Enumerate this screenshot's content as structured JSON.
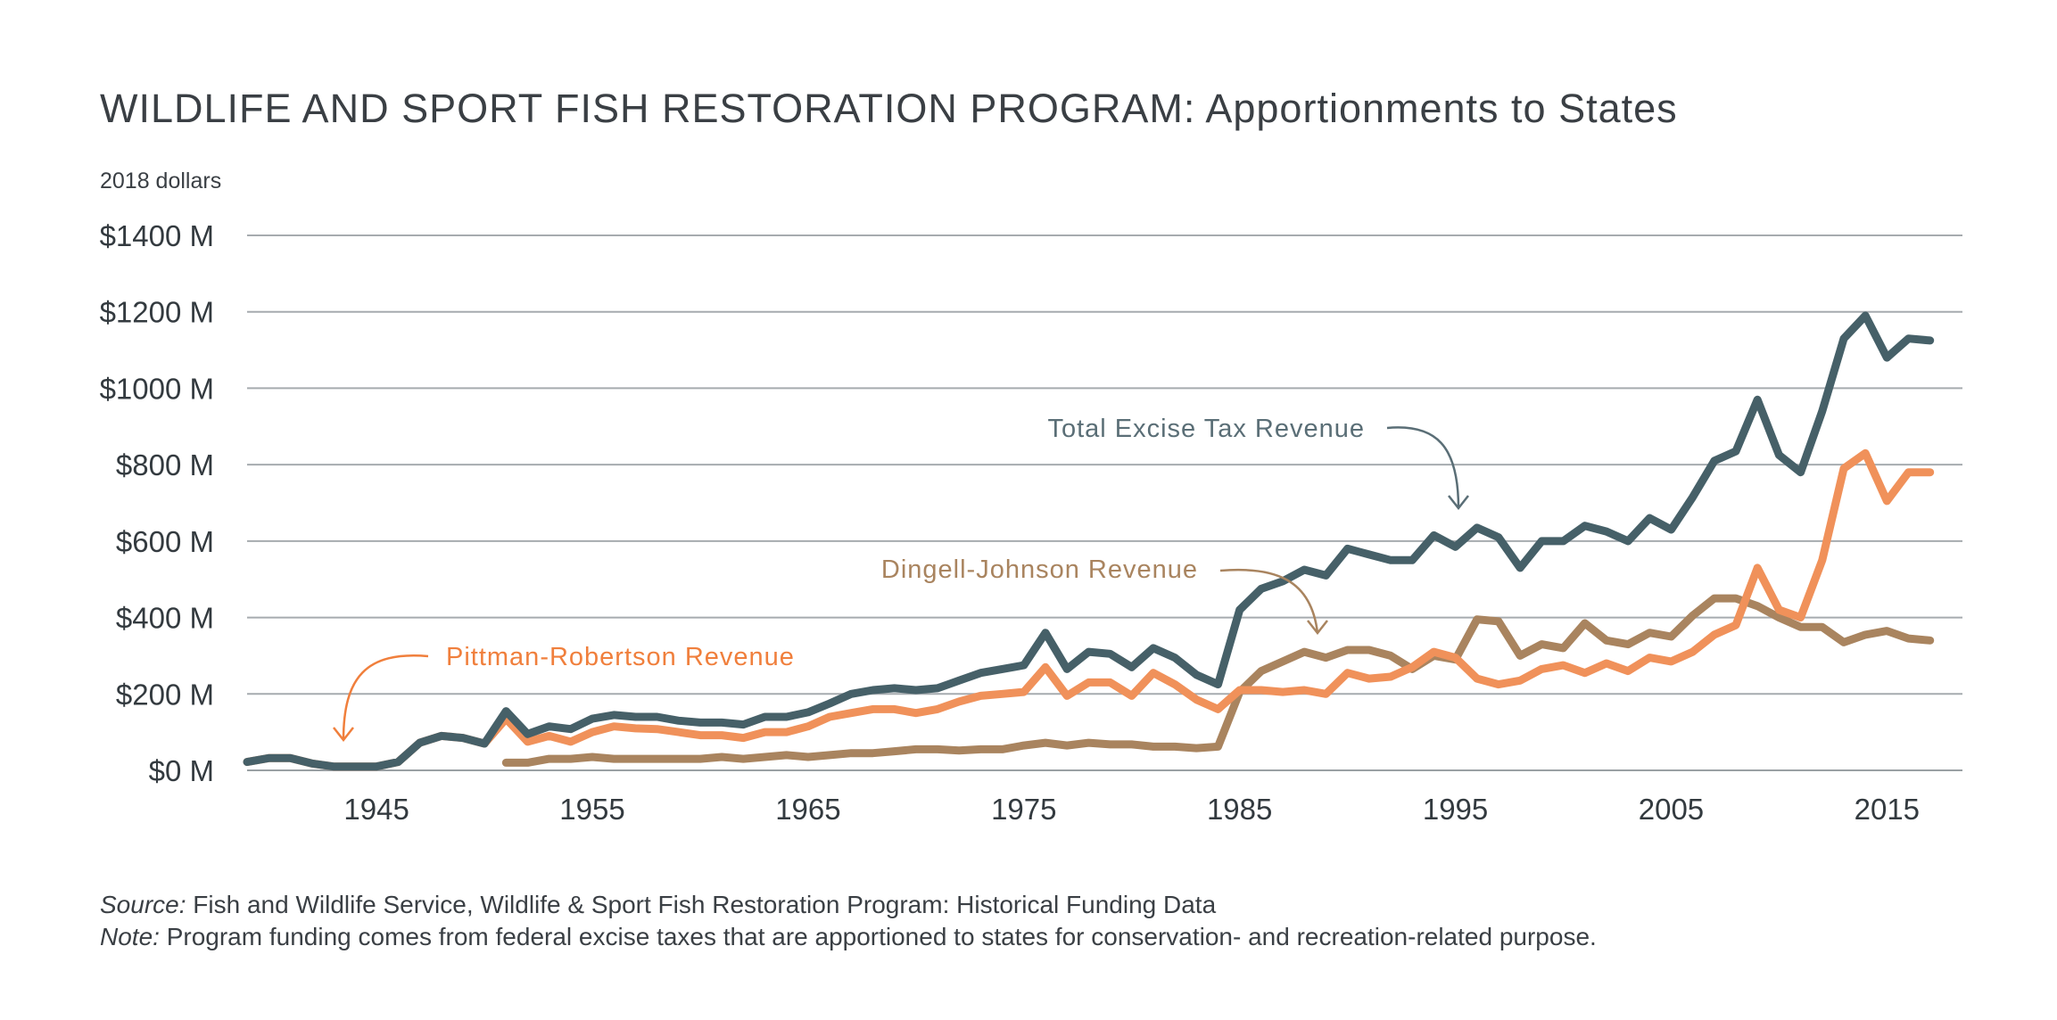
{
  "chart_data": {
    "type": "line",
    "title": "WILDLIFE AND SPORT FISH RESTORATION PROGRAM: Apportionments to States",
    "units_label": "2018 dollars",
    "ylim": [
      0,
      1400
    ],
    "yticks": [
      "$1400 M",
      "$1200 M",
      "$1000 M",
      "$800 M",
      "$600 M",
      "$400 M",
      "$200 M",
      "$0 M"
    ],
    "ytick_values": [
      1400,
      1200,
      1000,
      800,
      600,
      400,
      200,
      0
    ],
    "xlim": [
      1939,
      2018.5
    ],
    "xticks": [
      "1945",
      "1955",
      "1965",
      "1975",
      "1985",
      "1995",
      "2005",
      "2015"
    ],
    "xtick_values": [
      1945,
      1955,
      1965,
      1975,
      1985,
      1995,
      2005,
      2015
    ],
    "grid": true,
    "series": [
      {
        "name": "Total Excise Tax Revenue",
        "color": "#466068",
        "x": [
          1939,
          1940,
          1941,
          1942,
          1943,
          1944,
          1945,
          1946,
          1947,
          1948,
          1949,
          1950,
          1951,
          1952,
          1953,
          1954,
          1955,
          1956,
          1957,
          1958,
          1959,
          1960,
          1961,
          1962,
          1963,
          1964,
          1965,
          1966,
          1967,
          1968,
          1969,
          1970,
          1971,
          1972,
          1973,
          1974,
          1975,
          1976,
          1977,
          1978,
          1979,
          1980,
          1981,
          1982,
          1983,
          1984,
          1985,
          1986,
          1987,
          1988,
          1989,
          1990,
          1991,
          1992,
          1993,
          1994,
          1995,
          1996,
          1997,
          1998,
          1999,
          2000,
          2001,
          2002,
          2003,
          2004,
          2005,
          2006,
          2007,
          2008,
          2009,
          2010,
          2011,
          2012,
          2013,
          2014,
          2015,
          2016,
          2017,
          2018
        ],
        "values": [
          22,
          32,
          32,
          18,
          10,
          10,
          10,
          22,
          72,
          90,
          85,
          70,
          155,
          95,
          115,
          108,
          135,
          145,
          140,
          140,
          130,
          125,
          125,
          120,
          140,
          140,
          152,
          175,
          200,
          210,
          215,
          210,
          215,
          235,
          255,
          265,
          275,
          360,
          265,
          310,
          305,
          270,
          320,
          295,
          250,
          225,
          420,
          475,
          495,
          525,
          510,
          580,
          565,
          550,
          550,
          615,
          585,
          635,
          610,
          530,
          600,
          600,
          640,
          625,
          600,
          660,
          630,
          715,
          810,
          835,
          970,
          825,
          780,
          940,
          1130,
          1190,
          1080,
          1130,
          1125,
          null
        ]
      },
      {
        "name": "Pittman-Robertson Revenue",
        "color": "#f0915a",
        "x": [
          1939,
          1940,
          1941,
          1942,
          1943,
          1944,
          1945,
          1946,
          1947,
          1948,
          1949,
          1950,
          1951,
          1952,
          1953,
          1954,
          1955,
          1956,
          1957,
          1958,
          1959,
          1960,
          1961,
          1962,
          1963,
          1964,
          1965,
          1966,
          1967,
          1968,
          1969,
          1970,
          1971,
          1972,
          1973,
          1974,
          1975,
          1976,
          1977,
          1978,
          1979,
          1980,
          1981,
          1982,
          1983,
          1984,
          1985,
          1986,
          1987,
          1988,
          1989,
          1990,
          1991,
          1992,
          1993,
          1994,
          1995,
          1996,
          1997,
          1998,
          1999,
          2000,
          2001,
          2002,
          2003,
          2004,
          2005,
          2006,
          2007,
          2008,
          2009,
          2010,
          2011,
          2012,
          2013,
          2014,
          2015,
          2016,
          2017,
          2018
        ],
        "values": [
          22,
          32,
          32,
          18,
          10,
          10,
          10,
          22,
          72,
          90,
          85,
          70,
          135,
          75,
          90,
          75,
          100,
          115,
          110,
          108,
          100,
          92,
          92,
          85,
          100,
          100,
          115,
          140,
          150,
          160,
          160,
          150,
          160,
          180,
          195,
          200,
          205,
          270,
          195,
          230,
          230,
          195,
          255,
          225,
          185,
          160,
          210,
          210,
          205,
          210,
          200,
          255,
          240,
          245,
          270,
          310,
          295,
          240,
          225,
          235,
          265,
          275,
          255,
          280,
          260,
          295,
          285,
          310,
          355,
          380,
          530,
          420,
          400,
          550,
          790,
          830,
          705,
          780,
          780,
          null
        ]
      },
      {
        "name": "Dingell-Johnson Revenue",
        "color": "#a9845f",
        "x": [
          1951,
          1952,
          1953,
          1954,
          1955,
          1956,
          1957,
          1958,
          1959,
          1960,
          1961,
          1962,
          1963,
          1964,
          1965,
          1966,
          1967,
          1968,
          1969,
          1970,
          1971,
          1972,
          1973,
          1974,
          1975,
          1976,
          1977,
          1978,
          1979,
          1980,
          1981,
          1982,
          1983,
          1984,
          1985,
          1986,
          1987,
          1988,
          1989,
          1990,
          1991,
          1992,
          1993,
          1994,
          1995,
          1996,
          1997,
          1998,
          1999,
          2000,
          2001,
          2002,
          2003,
          2004,
          2005,
          2006,
          2007,
          2008,
          2009,
          2010,
          2011,
          2012,
          2013,
          2014,
          2015,
          2016,
          2017,
          2018
        ],
        "values": [
          20,
          20,
          30,
          30,
          35,
          30,
          30,
          30,
          30,
          30,
          35,
          30,
          35,
          40,
          35,
          40,
          45,
          45,
          50,
          55,
          55,
          52,
          55,
          55,
          65,
          72,
          65,
          72,
          68,
          68,
          62,
          62,
          58,
          62,
          205,
          260,
          285,
          310,
          295,
          315,
          315,
          300,
          265,
          300,
          290,
          395,
          390,
          300,
          330,
          320,
          385,
          340,
          330,
          360,
          350,
          405,
          450,
          450,
          430,
          400,
          375,
          375,
          335,
          355,
          365,
          345,
          340,
          null
        ]
      }
    ],
    "annotations": [
      {
        "text": "Total Excise Tax Revenue",
        "series": "Total Excise Tax Revenue"
      },
      {
        "text": "Dingell-Johnson Revenue",
        "series": "Dingell-Johnson Revenue"
      },
      {
        "text": "Pittman-Robertson Revenue",
        "series": "Pittman-Robertson Revenue"
      }
    ]
  },
  "footer": {
    "source_label": "Source:",
    "source_text": " Fish and Wildlife Service, Wildlife & Sport Fish Restoration Program: Historical Funding Data",
    "note_label": "Note:",
    "note_text": " Program funding comes from federal excise taxes that are apportioned to states for conservation- and recreation-related purpose."
  }
}
